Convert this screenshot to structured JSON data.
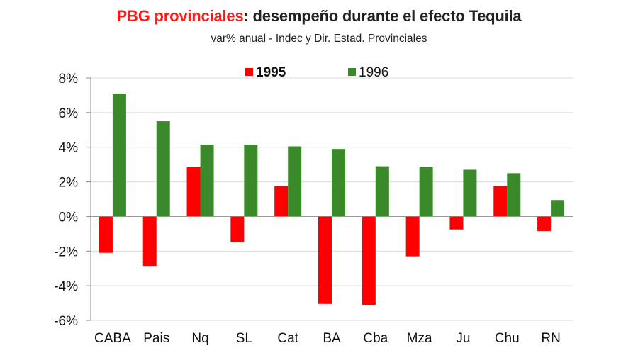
{
  "title": {
    "highlight": "PBG provinciales",
    "rest": ": desempeño durante el efecto Tequila"
  },
  "subtitle": "var% anual - Indec y Dir. Estad. Provinciales",
  "colors": {
    "series_1995": "#ff0000",
    "series_1996": "#3a8a2a",
    "grid": "#d9d9d9",
    "axis": "#888888"
  },
  "chart_data": {
    "type": "bar",
    "title": "PBG provinciales: desempeño durante el efecto Tequila",
    "subtitle": "var% anual - Indec y Dir. Estad. Provinciales",
    "xlabel": "",
    "ylabel": "",
    "ylim": [
      -6,
      8
    ],
    "yticks": [
      8,
      6,
      4,
      2,
      0,
      -2,
      -4,
      -6
    ],
    "ytick_labels": [
      "8%",
      "6%",
      "4%",
      "2%",
      "0%",
      "-2%",
      "-4%",
      "-6%"
    ],
    "grid": true,
    "legend_position": "top-center",
    "categories": [
      "CABA",
      "Pais",
      "Nq",
      "SL",
      "Cat",
      "BA",
      "Cba",
      "Mza",
      "Ju",
      "Chu",
      "RN"
    ],
    "series": [
      {
        "name": "1995",
        "bold": true,
        "values": [
          -2.1,
          -2.85,
          2.85,
          -1.5,
          1.75,
          -5.05,
          -5.1,
          -2.3,
          -0.75,
          1.75,
          -0.85
        ]
      },
      {
        "name": "1996",
        "bold": false,
        "values": [
          7.1,
          5.5,
          4.15,
          4.15,
          4.05,
          3.9,
          2.9,
          2.85,
          2.7,
          2.5,
          0.95
        ]
      }
    ]
  }
}
